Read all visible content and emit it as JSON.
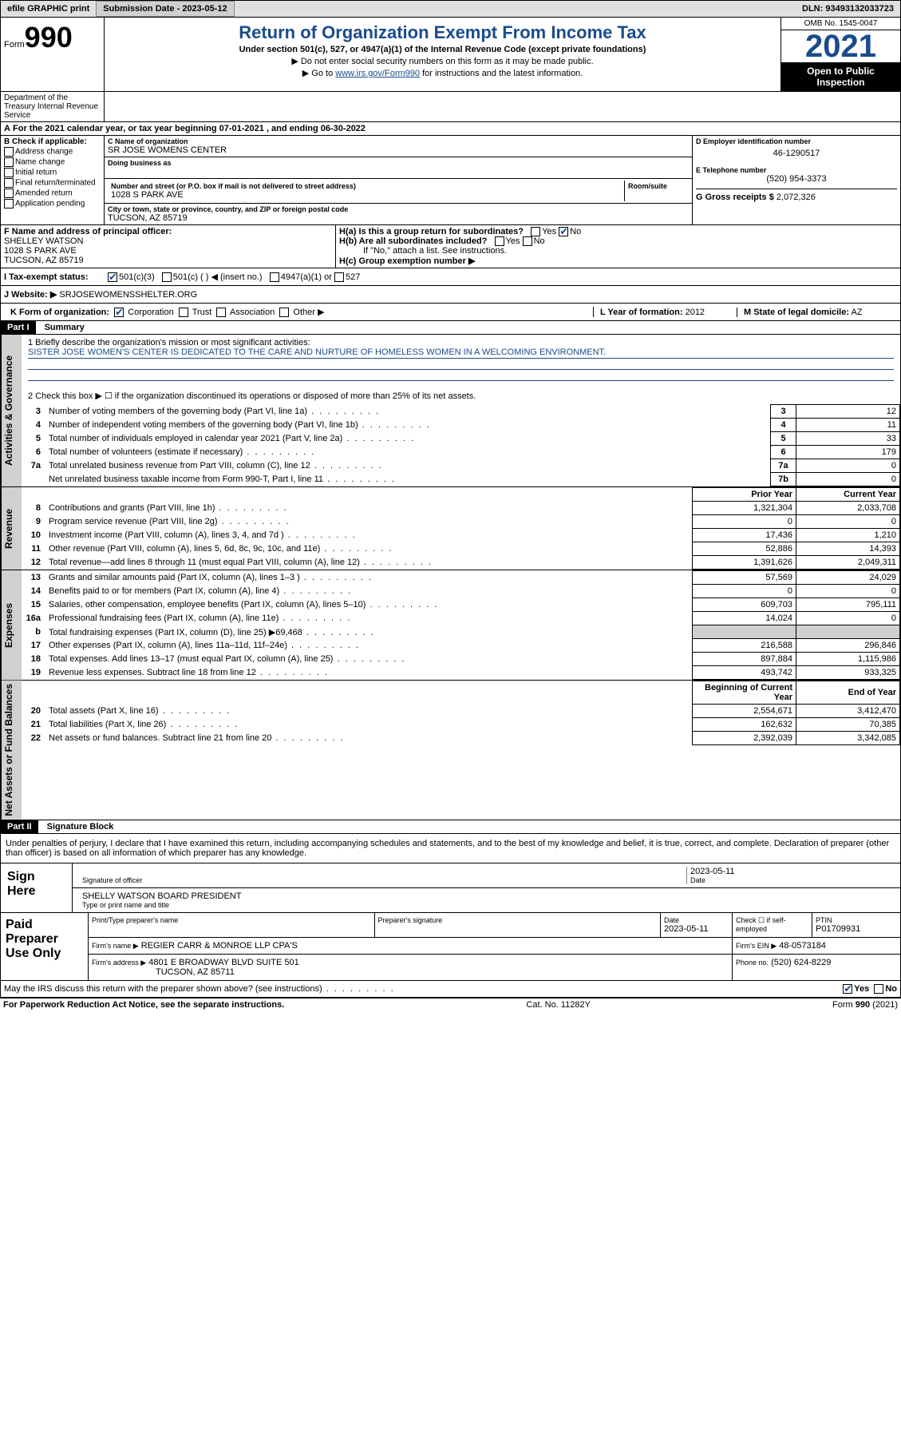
{
  "colors": {
    "accent": "#1a4b8c",
    "black": "#000000",
    "grey": "#d0d0d0",
    "light_grey": "#e0e0e0"
  },
  "topbar": {
    "efile": "efile GRAPHIC print",
    "submission_label": "Submission Date - 2023-05-12",
    "dln": "DLN: 93493132033723"
  },
  "header": {
    "form_word": "Form",
    "form_num": "990",
    "title": "Return of Organization Exempt From Income Tax",
    "subtitle": "Under section 501(c), 527, or 4947(a)(1) of the Internal Revenue Code (except private foundations)",
    "note1": "▶ Do not enter social security numbers on this form as it may be made public.",
    "note2_pre": "▶ Go to ",
    "note2_link": "www.irs.gov/Form990",
    "note2_post": " for instructions and the latest information.",
    "omb": "OMB No. 1545-0047",
    "year": "2021",
    "open": "Open to Public Inspection",
    "dept": "Department of the Treasury Internal Revenue Service"
  },
  "period": "For the 2021 calendar year, or tax year beginning 07-01-2021   , and ending 06-30-2022",
  "checkB": {
    "label": "B Check if applicable:",
    "opts": [
      "Address change",
      "Name change",
      "Initial return",
      "Final return/terminated",
      "Amended return",
      "Application pending"
    ]
  },
  "entity": {
    "name_lbl": "C Name of organization",
    "name": "SR JOSE WOMENS CENTER",
    "dba_lbl": "Doing business as",
    "addr_lbl": "Number and street (or P.O. box if mail is not delivered to street address)",
    "room_lbl": "Room/suite",
    "addr": "1028 S PARK AVE",
    "city_lbl": "City or town, state or province, country, and ZIP or foreign postal code",
    "city": "TUCSON, AZ  85719",
    "ein_lbl": "D Employer identification number",
    "ein": "46-1290517",
    "phone_lbl": "E Telephone number",
    "phone": "(520) 954-3373",
    "gross_lbl": "G Gross receipts $",
    "gross": "2,072,326"
  },
  "officer": {
    "lbl": "F  Name and address of principal officer:",
    "name": "SHELLEY WATSON",
    "addr1": "1028 S PARK AVE",
    "addr2": "TUCSON, AZ  85719"
  },
  "groupH": {
    "ha": "H(a)  Is this a group return for subordinates?",
    "hb": "H(b)  Are all subordinates included?",
    "hb_note": "If \"No,\" attach a list. See instructions.",
    "hc": "H(c)  Group exemption number ▶",
    "yes": "Yes",
    "no": "No"
  },
  "status": {
    "lbl": "I   Tax-exempt status:",
    "o1": "501(c)(3)",
    "o2": "501(c) (  ) ◀ (insert no.)",
    "o3": "4947(a)(1) or",
    "o4": "527"
  },
  "website": {
    "lbl": "J   Website: ▶",
    "val": "SRJOSEWOMENSSHELTER.ORG"
  },
  "formorg": {
    "lbl": "K Form of organization:",
    "opts": [
      "Corporation",
      "Trust",
      "Association",
      "Other ▶"
    ],
    "year_lbl": "L Year of formation:",
    "year": "2012",
    "domicile_lbl": "M State of legal domicile:",
    "domicile": "AZ"
  },
  "part1": {
    "hdr": "Part I",
    "title": "Summary",
    "line1_lbl": "1   Briefly describe the organization's mission or most significant activities:",
    "mission": "SISTER JOSE WOMEN'S CENTER IS DEDICATED TO THE CARE AND NURTURE OF HOMELESS WOMEN IN A WELCOMING ENVIRONMENT.",
    "line2": "2   Check this box ▶ ☐ if the organization discontinued its operations or disposed of more than 25% of its net assets."
  },
  "governance_rows": [
    {
      "n": "3",
      "d": "Number of voting members of the governing body (Part VI, line 1a)",
      "box": "3",
      "v": "12"
    },
    {
      "n": "4",
      "d": "Number of independent voting members of the governing body (Part VI, line 1b)",
      "box": "4",
      "v": "11"
    },
    {
      "n": "5",
      "d": "Total number of individuals employed in calendar year 2021 (Part V, line 2a)",
      "box": "5",
      "v": "33"
    },
    {
      "n": "6",
      "d": "Total number of volunteers (estimate if necessary)",
      "box": "6",
      "v": "179"
    },
    {
      "n": "7a",
      "d": "Total unrelated business revenue from Part VIII, column (C), line 12",
      "box": "7a",
      "v": "0"
    },
    {
      "n": "",
      "d": "Net unrelated business taxable income from Form 990-T, Part I, line 11",
      "box": "7b",
      "v": "0"
    }
  ],
  "col_headers": {
    "prior": "Prior Year",
    "current": "Current Year"
  },
  "revenue_rows": [
    {
      "n": "8",
      "d": "Contributions and grants (Part VIII, line 1h)",
      "p": "1,321,304",
      "c": "2,033,708"
    },
    {
      "n": "9",
      "d": "Program service revenue (Part VIII, line 2g)",
      "p": "0",
      "c": "0"
    },
    {
      "n": "10",
      "d": "Investment income (Part VIII, column (A), lines 3, 4, and 7d )",
      "p": "17,436",
      "c": "1,210"
    },
    {
      "n": "11",
      "d": "Other revenue (Part VIII, column (A), lines 5, 6d, 8c, 9c, 10c, and 11e)",
      "p": "52,886",
      "c": "14,393"
    },
    {
      "n": "12",
      "d": "Total revenue—add lines 8 through 11 (must equal Part VIII, column (A), line 12)",
      "p": "1,391,626",
      "c": "2,049,311"
    }
  ],
  "expense_rows": [
    {
      "n": "13",
      "d": "Grants and similar amounts paid (Part IX, column (A), lines 1–3 )",
      "p": "57,569",
      "c": "24,029"
    },
    {
      "n": "14",
      "d": "Benefits paid to or for members (Part IX, column (A), line 4)",
      "p": "0",
      "c": "0"
    },
    {
      "n": "15",
      "d": "Salaries, other compensation, employee benefits (Part IX, column (A), lines 5–10)",
      "p": "609,703",
      "c": "795,111"
    },
    {
      "n": "16a",
      "d": "Professional fundraising fees (Part IX, column (A), line 11e)",
      "p": "14,024",
      "c": "0"
    },
    {
      "n": "b",
      "d": "Total fundraising expenses (Part IX, column (D), line 25) ▶69,468",
      "p": "",
      "c": "",
      "shaded": true
    },
    {
      "n": "17",
      "d": "Other expenses (Part IX, column (A), lines 11a–11d, 11f–24e)",
      "p": "216,588",
      "c": "296,846"
    },
    {
      "n": "18",
      "d": "Total expenses. Add lines 13–17 (must equal Part IX, column (A), line 25)",
      "p": "897,884",
      "c": "1,115,986"
    },
    {
      "n": "19",
      "d": "Revenue less expenses. Subtract line 18 from line 12",
      "p": "493,742",
      "c": "933,325"
    }
  ],
  "balance_headers": {
    "begin": "Beginning of Current Year",
    "end": "End of Year"
  },
  "balance_rows": [
    {
      "n": "20",
      "d": "Total assets (Part X, line 16)",
      "p": "2,554,671",
      "c": "3,412,470"
    },
    {
      "n": "21",
      "d": "Total liabilities (Part X, line 26)",
      "p": "162,632",
      "c": "70,385"
    },
    {
      "n": "22",
      "d": "Net assets or fund balances. Subtract line 21 from line 20",
      "p": "2,392,039",
      "c": "3,342,085"
    }
  ],
  "vtabs": {
    "gov": "Activities & Governance",
    "rev": "Revenue",
    "exp": "Expenses",
    "net": "Net Assets or Fund Balances"
  },
  "part2": {
    "hdr": "Part II",
    "title": "Signature Block",
    "penalties": "Under penalties of perjury, I declare that I have examined this return, including accompanying schedules and statements, and to the best of my knowledge and belief, it is true, correct, and complete. Declaration of preparer (other than officer) is based on all information of which preparer has any knowledge."
  },
  "sign": {
    "here": "Sign Here",
    "sig_lbl": "Signature of officer",
    "date_lbl": "Date",
    "date": "2023-05-11",
    "name": "SHELLY WATSON  BOARD PRESIDENT",
    "name_lbl": "Type or print name and title"
  },
  "preparer": {
    "left": "Paid Preparer Use Only",
    "print_lbl": "Print/Type preparer's name",
    "sig_lbl": "Preparer's signature",
    "date_lbl": "Date",
    "date": "2023-05-11",
    "check_lbl": "Check ☐ if self-employed",
    "ptin_lbl": "PTIN",
    "ptin": "P01709931",
    "firm_name_lbl": "Firm's name    ▶",
    "firm_name": "REGIER CARR & MONROE LLP CPA'S",
    "firm_ein_lbl": "Firm's EIN ▶",
    "firm_ein": "48-0573184",
    "firm_addr_lbl": "Firm's address ▶",
    "firm_addr1": "4801 E BROADWAY BLVD SUITE 501",
    "firm_addr2": "TUCSON, AZ  85711",
    "phone_lbl": "Phone no.",
    "phone": "(520) 624-8229"
  },
  "discuss": {
    "q": "May the IRS discuss this return with the preparer shown above? (see instructions)",
    "yes": "Yes",
    "no": "No"
  },
  "footer": {
    "pra": "For Paperwork Reduction Act Notice, see the separate instructions.",
    "cat": "Cat. No. 11282Y",
    "form": "Form 990 (2021)"
  }
}
